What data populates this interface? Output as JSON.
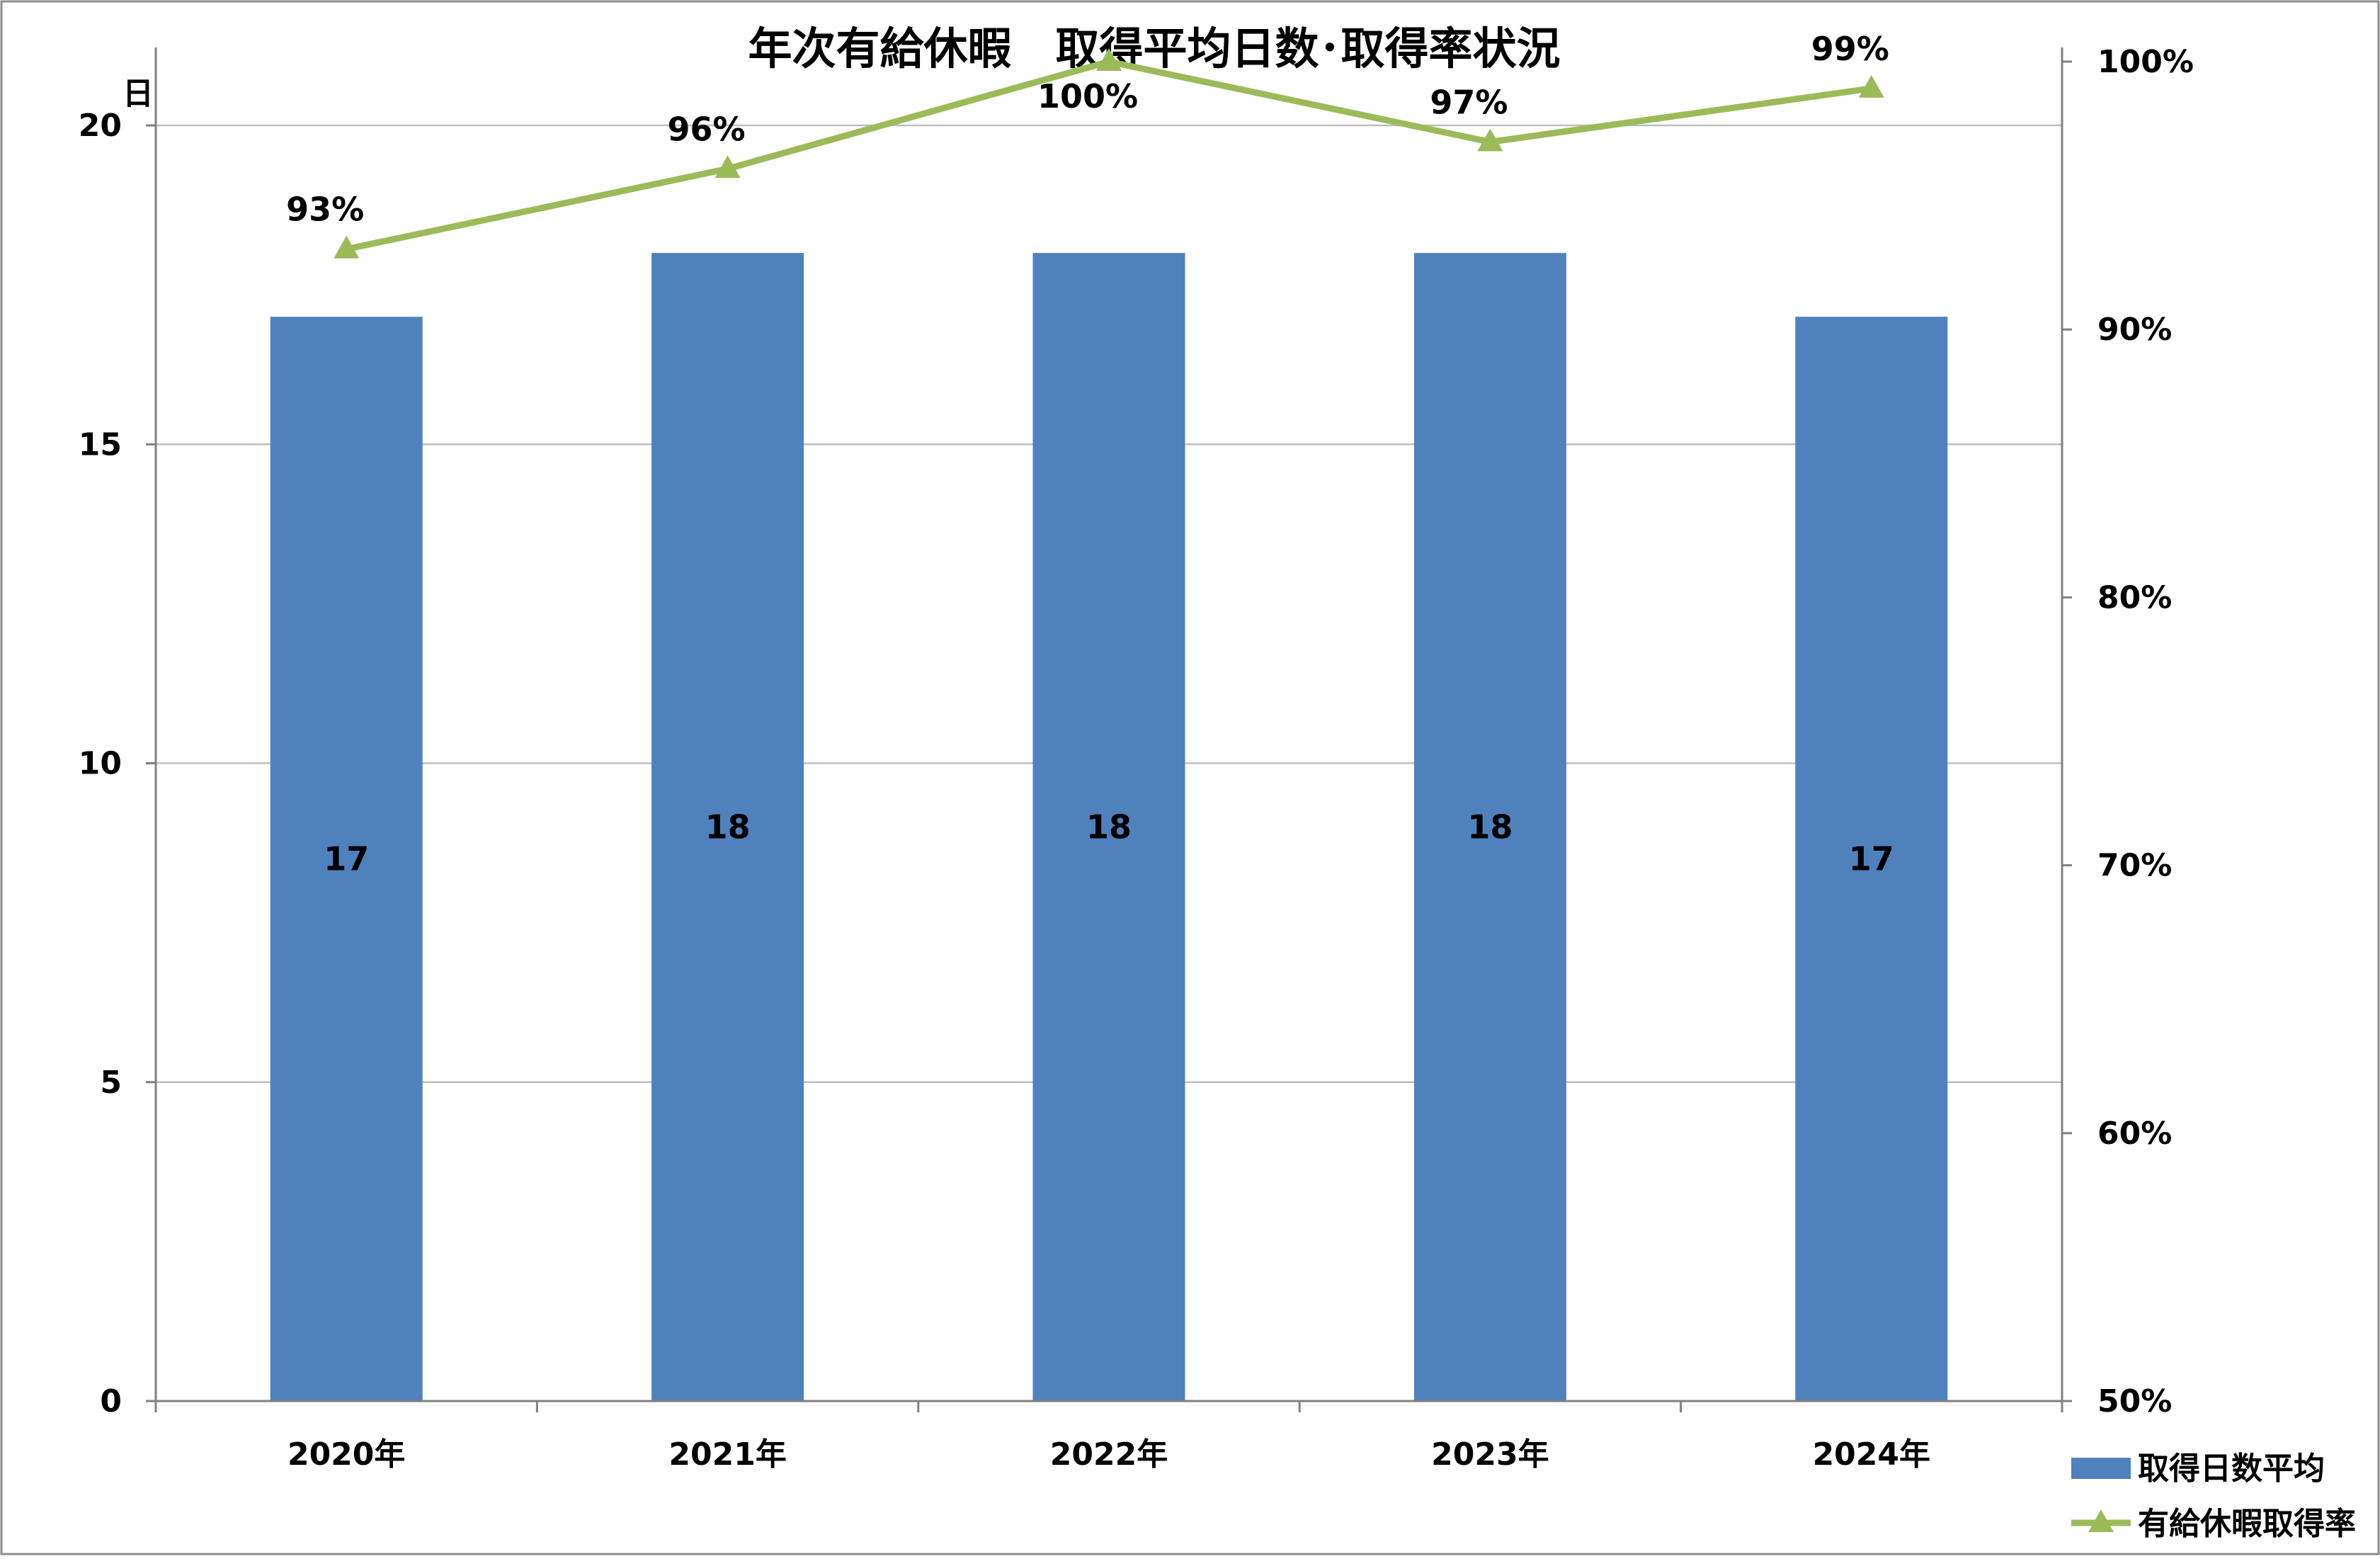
{
  "chart_data": {
    "type": "bar",
    "title": "年次有給休暇　取得平均日数･取得率状況",
    "categories": [
      "2020年",
      "2021年",
      "2022年",
      "2023年",
      "2024年"
    ],
    "series": [
      {
        "name": "取得日数平均",
        "kind": "bar",
        "axis": "left",
        "values": [
          17,
          18,
          18,
          18,
          17
        ],
        "labels": [
          "17",
          "18",
          "18",
          "18",
          "17"
        ],
        "color": "#4f81bd"
      },
      {
        "name": "有給休暇取得率",
        "kind": "line",
        "marker": "triangle",
        "axis": "right",
        "values": [
          93,
          96,
          100,
          97,
          99
        ],
        "labels": [
          "93%",
          "96%",
          "100%",
          "97%",
          "99%"
        ],
        "color": "#9bbb59"
      }
    ],
    "y_left": {
      "label": "日",
      "ylim": [
        0,
        21
      ],
      "ticks": [
        0,
        5,
        10,
        15,
        20
      ],
      "tick_labels": [
        "0",
        "5",
        "10",
        "15",
        "20"
      ]
    },
    "y_right": {
      "ylim": [
        50,
        100
      ],
      "ticks": [
        50,
        60,
        70,
        80,
        90,
        100
      ],
      "tick_labels": [
        "50%",
        "60%",
        "70%",
        "80%",
        "90%",
        "100%"
      ]
    },
    "grid": true,
    "legend": "bottom-right"
  }
}
